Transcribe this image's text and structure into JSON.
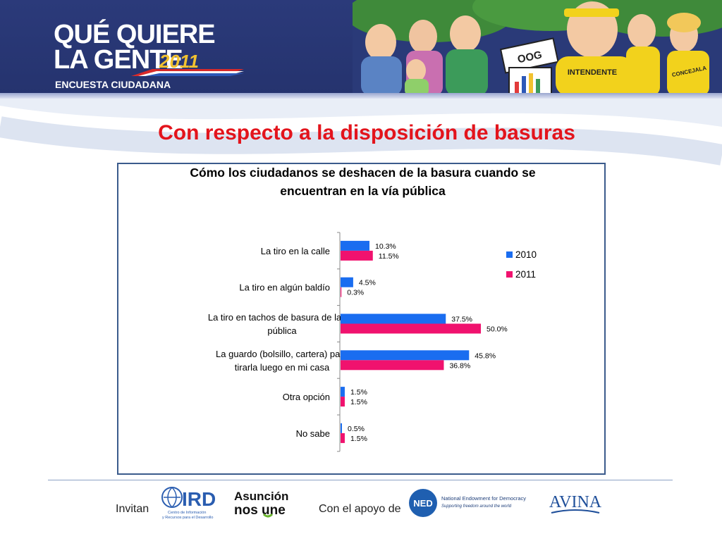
{
  "header": {
    "brand_line1": "QUÉ QUIERE",
    "brand_line2": "LA GENTE",
    "brand_year": "2011",
    "brand_sub": "ENCUESTA CIUDADANA",
    "cartoon_signs": [
      "OOG",
      "INTENDENTE",
      "CONCEJALA"
    ]
  },
  "slide_title": "Con respecto a la disposición de basuras",
  "chart_data": {
    "type": "bar",
    "orientation": "horizontal",
    "title": "Cómo los ciudadanos se deshacen de la basura cuando se encuentran en la vía pública",
    "title_lines": [
      "Cómo los ciudadanos se deshacen de la basura cuando se",
      "encuentran en la vía pública"
    ],
    "categories": [
      "La tiro en la calle",
      "La tiro en algún baldío",
      "La tiro en tachos de basura de la vía pública",
      "La guardo (bolsillo, cartera) para tirarla luego en mi casa",
      "Otra opción",
      "No sabe"
    ],
    "category_lines": [
      [
        "La tiro en la calle"
      ],
      [
        "La tiro en algún baldío"
      ],
      [
        "La tiro en tachos de basura de la vía",
        "pública"
      ],
      [
        "La guardo (bolsillo, cartera) para",
        "tirarla luego en mi casa"
      ],
      [
        "Otra opción"
      ],
      [
        "No sabe"
      ]
    ],
    "series": [
      {
        "name": "2010",
        "color": "#1a6df0",
        "values": [
          10.3,
          4.5,
          37.5,
          45.8,
          1.5,
          0.5
        ],
        "labels": [
          "10.3%",
          "4.5%",
          "37.5%",
          "45.8%",
          "1.5%",
          "0.5%"
        ]
      },
      {
        "name": "2011",
        "color": "#f0126e",
        "values": [
          11.5,
          0.3,
          50.0,
          36.8,
          1.5,
          1.5
        ],
        "labels": [
          "11.5%",
          "0.3%",
          "50.0%",
          "36.8%",
          "1.5%",
          "1.5%"
        ]
      }
    ],
    "legend": [
      "2010",
      "2011"
    ],
    "legend_position": "right",
    "xlim": [
      0,
      55
    ],
    "grid": false
  },
  "footer": {
    "invite_label": "Invitan",
    "support_label": "Con el apoyo de",
    "ird_text": "IRD",
    "ird_sub1": "Centro de Información",
    "ird_sub2": "y Recursos para el Desarrollo",
    "asuncion_line1": "Asunción",
    "asuncion_line2": "nos une",
    "ned_badge": "NED",
    "ned_line1": "National Endowment for Democracy",
    "ned_line2": "Supporting freedom around the world",
    "avina_text": "AVINA"
  },
  "colors": {
    "banner": "#2b3a7a",
    "title_red": "#e3141c",
    "frame": "#3b5b8c"
  }
}
